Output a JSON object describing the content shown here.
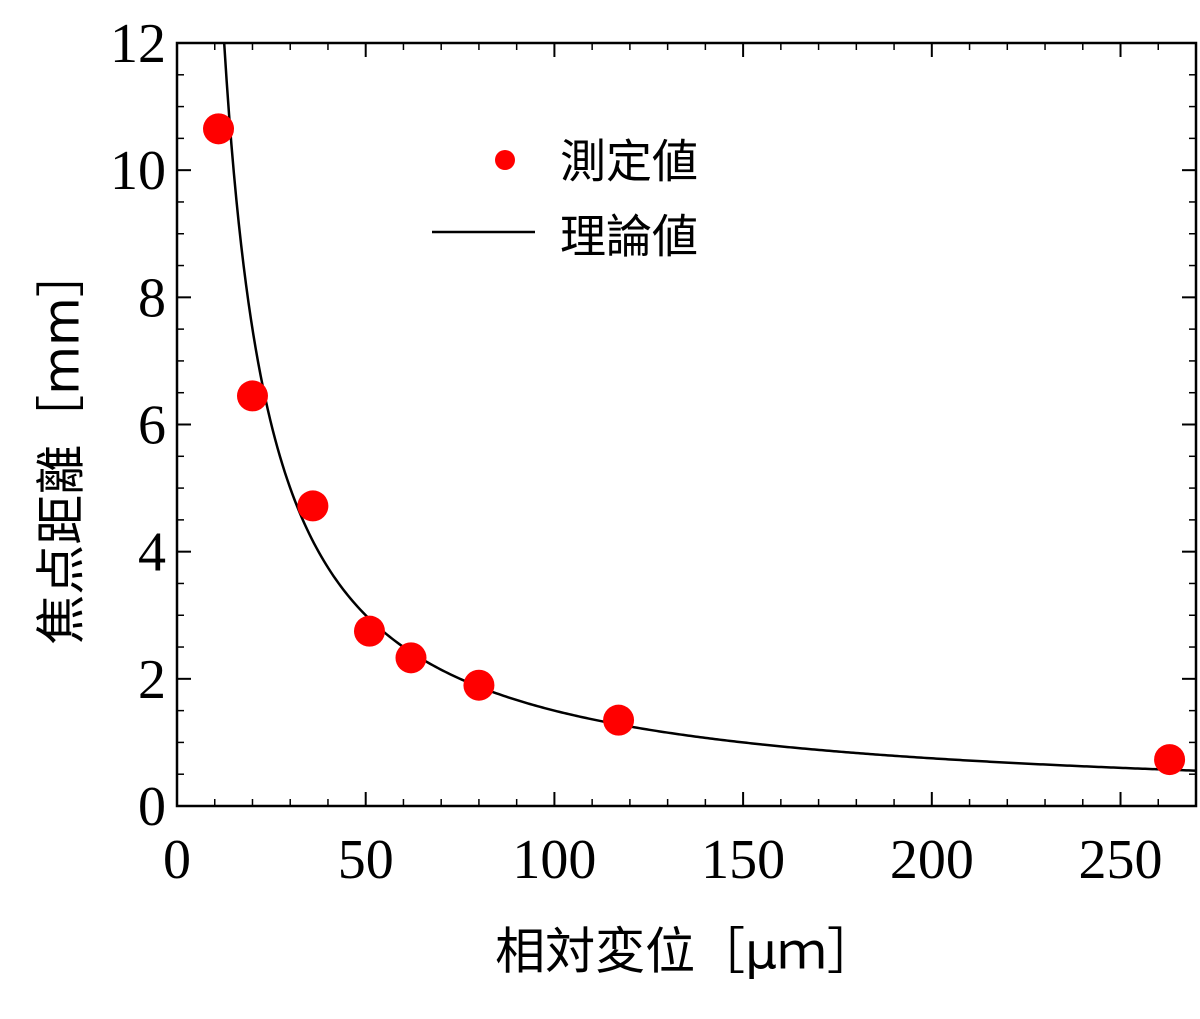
{
  "chart_data": {
    "type": "scatter",
    "xlabel": "相対変位［μｍ］",
    "ylabel": "焦点距離［mm］",
    "xlim": [
      0,
      270
    ],
    "ylim": [
      0,
      12
    ],
    "x_ticks": [
      0,
      50,
      100,
      150,
      200,
      250
    ],
    "y_ticks": [
      0,
      2,
      4,
      6,
      8,
      10,
      12
    ],
    "grid": false,
    "legend_position": "top-center",
    "series": [
      {
        "name": "測定値",
        "kind": "scatter",
        "color": "#ff0000",
        "points": [
          {
            "x": 11,
            "y": 10.65
          },
          {
            "x": 20,
            "y": 6.45
          },
          {
            "x": 36,
            "y": 4.72
          },
          {
            "x": 51,
            "y": 2.75
          },
          {
            "x": 62,
            "y": 2.33
          },
          {
            "x": 80,
            "y": 1.9
          },
          {
            "x": 117,
            "y": 1.35
          },
          {
            "x": 263,
            "y": 0.73
          }
        ]
      },
      {
        "name": "理論値",
        "kind": "line",
        "color": "#000000",
        "function": "y = 150 / x",
        "x_range": [
          12.5,
          270
        ]
      }
    ]
  }
}
